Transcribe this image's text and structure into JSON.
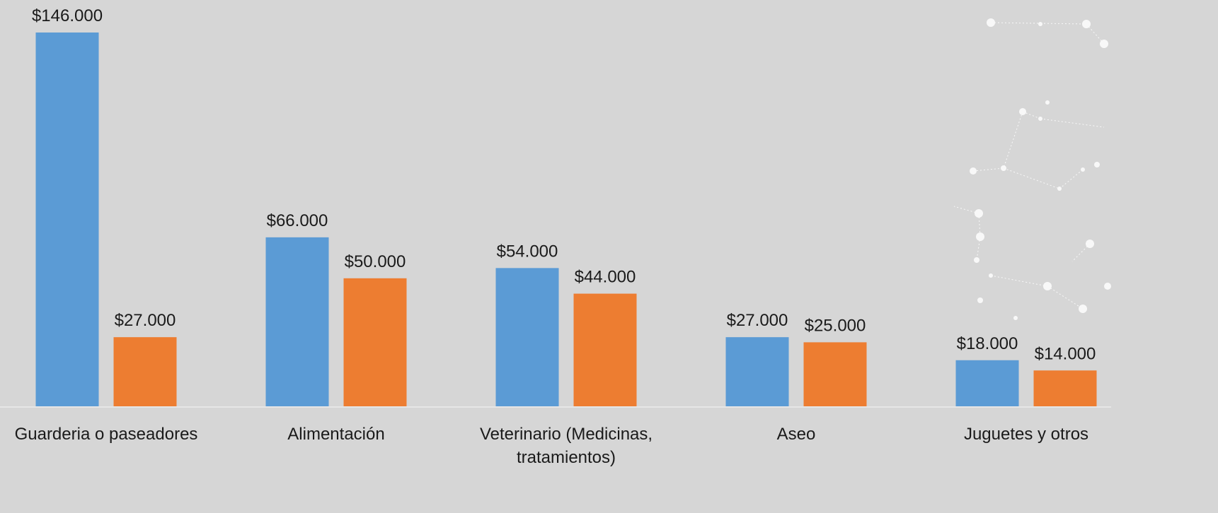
{
  "chart_data": {
    "type": "bar",
    "categories": [
      "Guarderia o paseadores",
      "Alimentación",
      "Veterinario (Medicinas, tratamientos)",
      "Aseo",
      "Juguetes y otros"
    ],
    "series": [
      {
        "color": "#5b9bd5",
        "values": [
          146000,
          66000,
          54000,
          27000,
          18000
        ],
        "value_labels": [
          "$146.000",
          "$66.000",
          "$54.000",
          "$27.000",
          "$18.000"
        ]
      },
      {
        "color": "#ed7d31",
        "values": [
          27000,
          50000,
          44000,
          25000,
          14000
        ],
        "value_labels": [
          "$27.000",
          "$50.000",
          "$44.000",
          "$25.000",
          "$14.000"
        ]
      }
    ]
  }
}
